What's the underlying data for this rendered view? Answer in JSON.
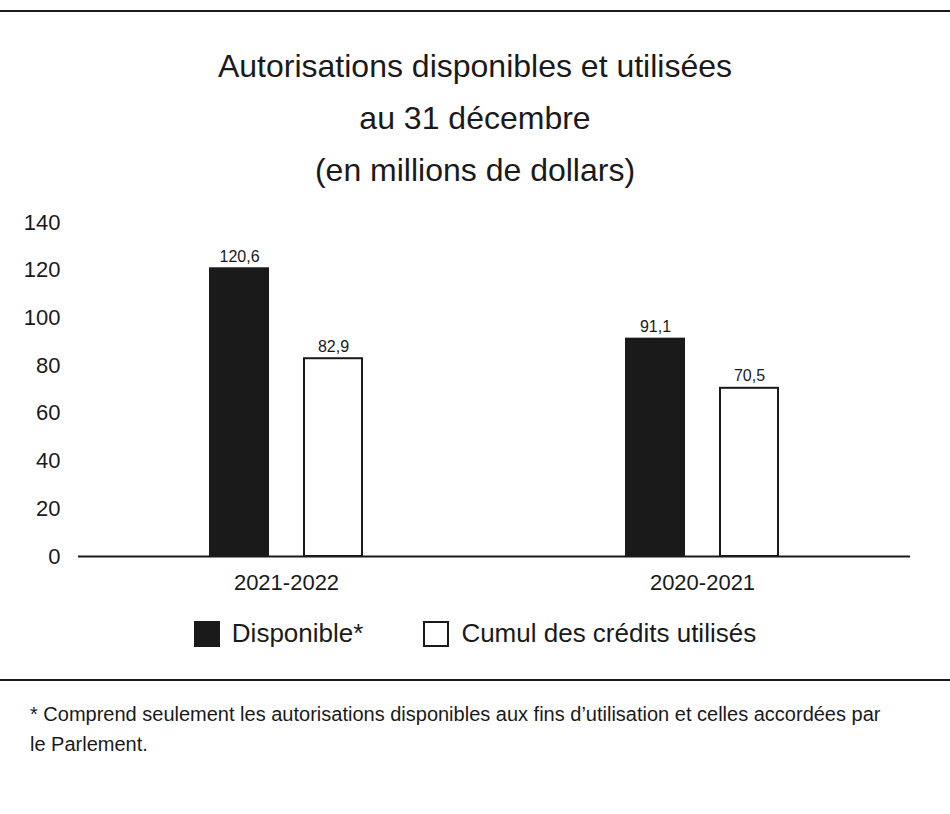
{
  "chart_data": {
    "type": "bar",
    "title": "Autorisations disponibles et utilisées\nau 31 décembre",
    "subtitle": "(en millions de dollars)",
    "caption": "* Comprend seulement les autorisations disponibles aux fins d’utilisation et celles accordées par le Parlement.",
    "categories": [
      "2021-2022",
      "2020-2021"
    ],
    "series": [
      {
        "name": "Disponible*",
        "color": "#1a1a1a",
        "values": [
          120.6,
          91.1
        ],
        "value_labels": [
          "120,6",
          "91,1"
        ]
      },
      {
        "name": "Cumul des crédits utilisés",
        "color": "#ffffff",
        "values": [
          82.9,
          70.5
        ],
        "value_labels": [
          "82,9",
          "70,5"
        ]
      }
    ],
    "ylim": [
      0,
      140
    ],
    "yticks": [
      0,
      20,
      40,
      60,
      80,
      100,
      120,
      140
    ],
    "grid": false,
    "legend": "bottom",
    "data_labels": true
  }
}
